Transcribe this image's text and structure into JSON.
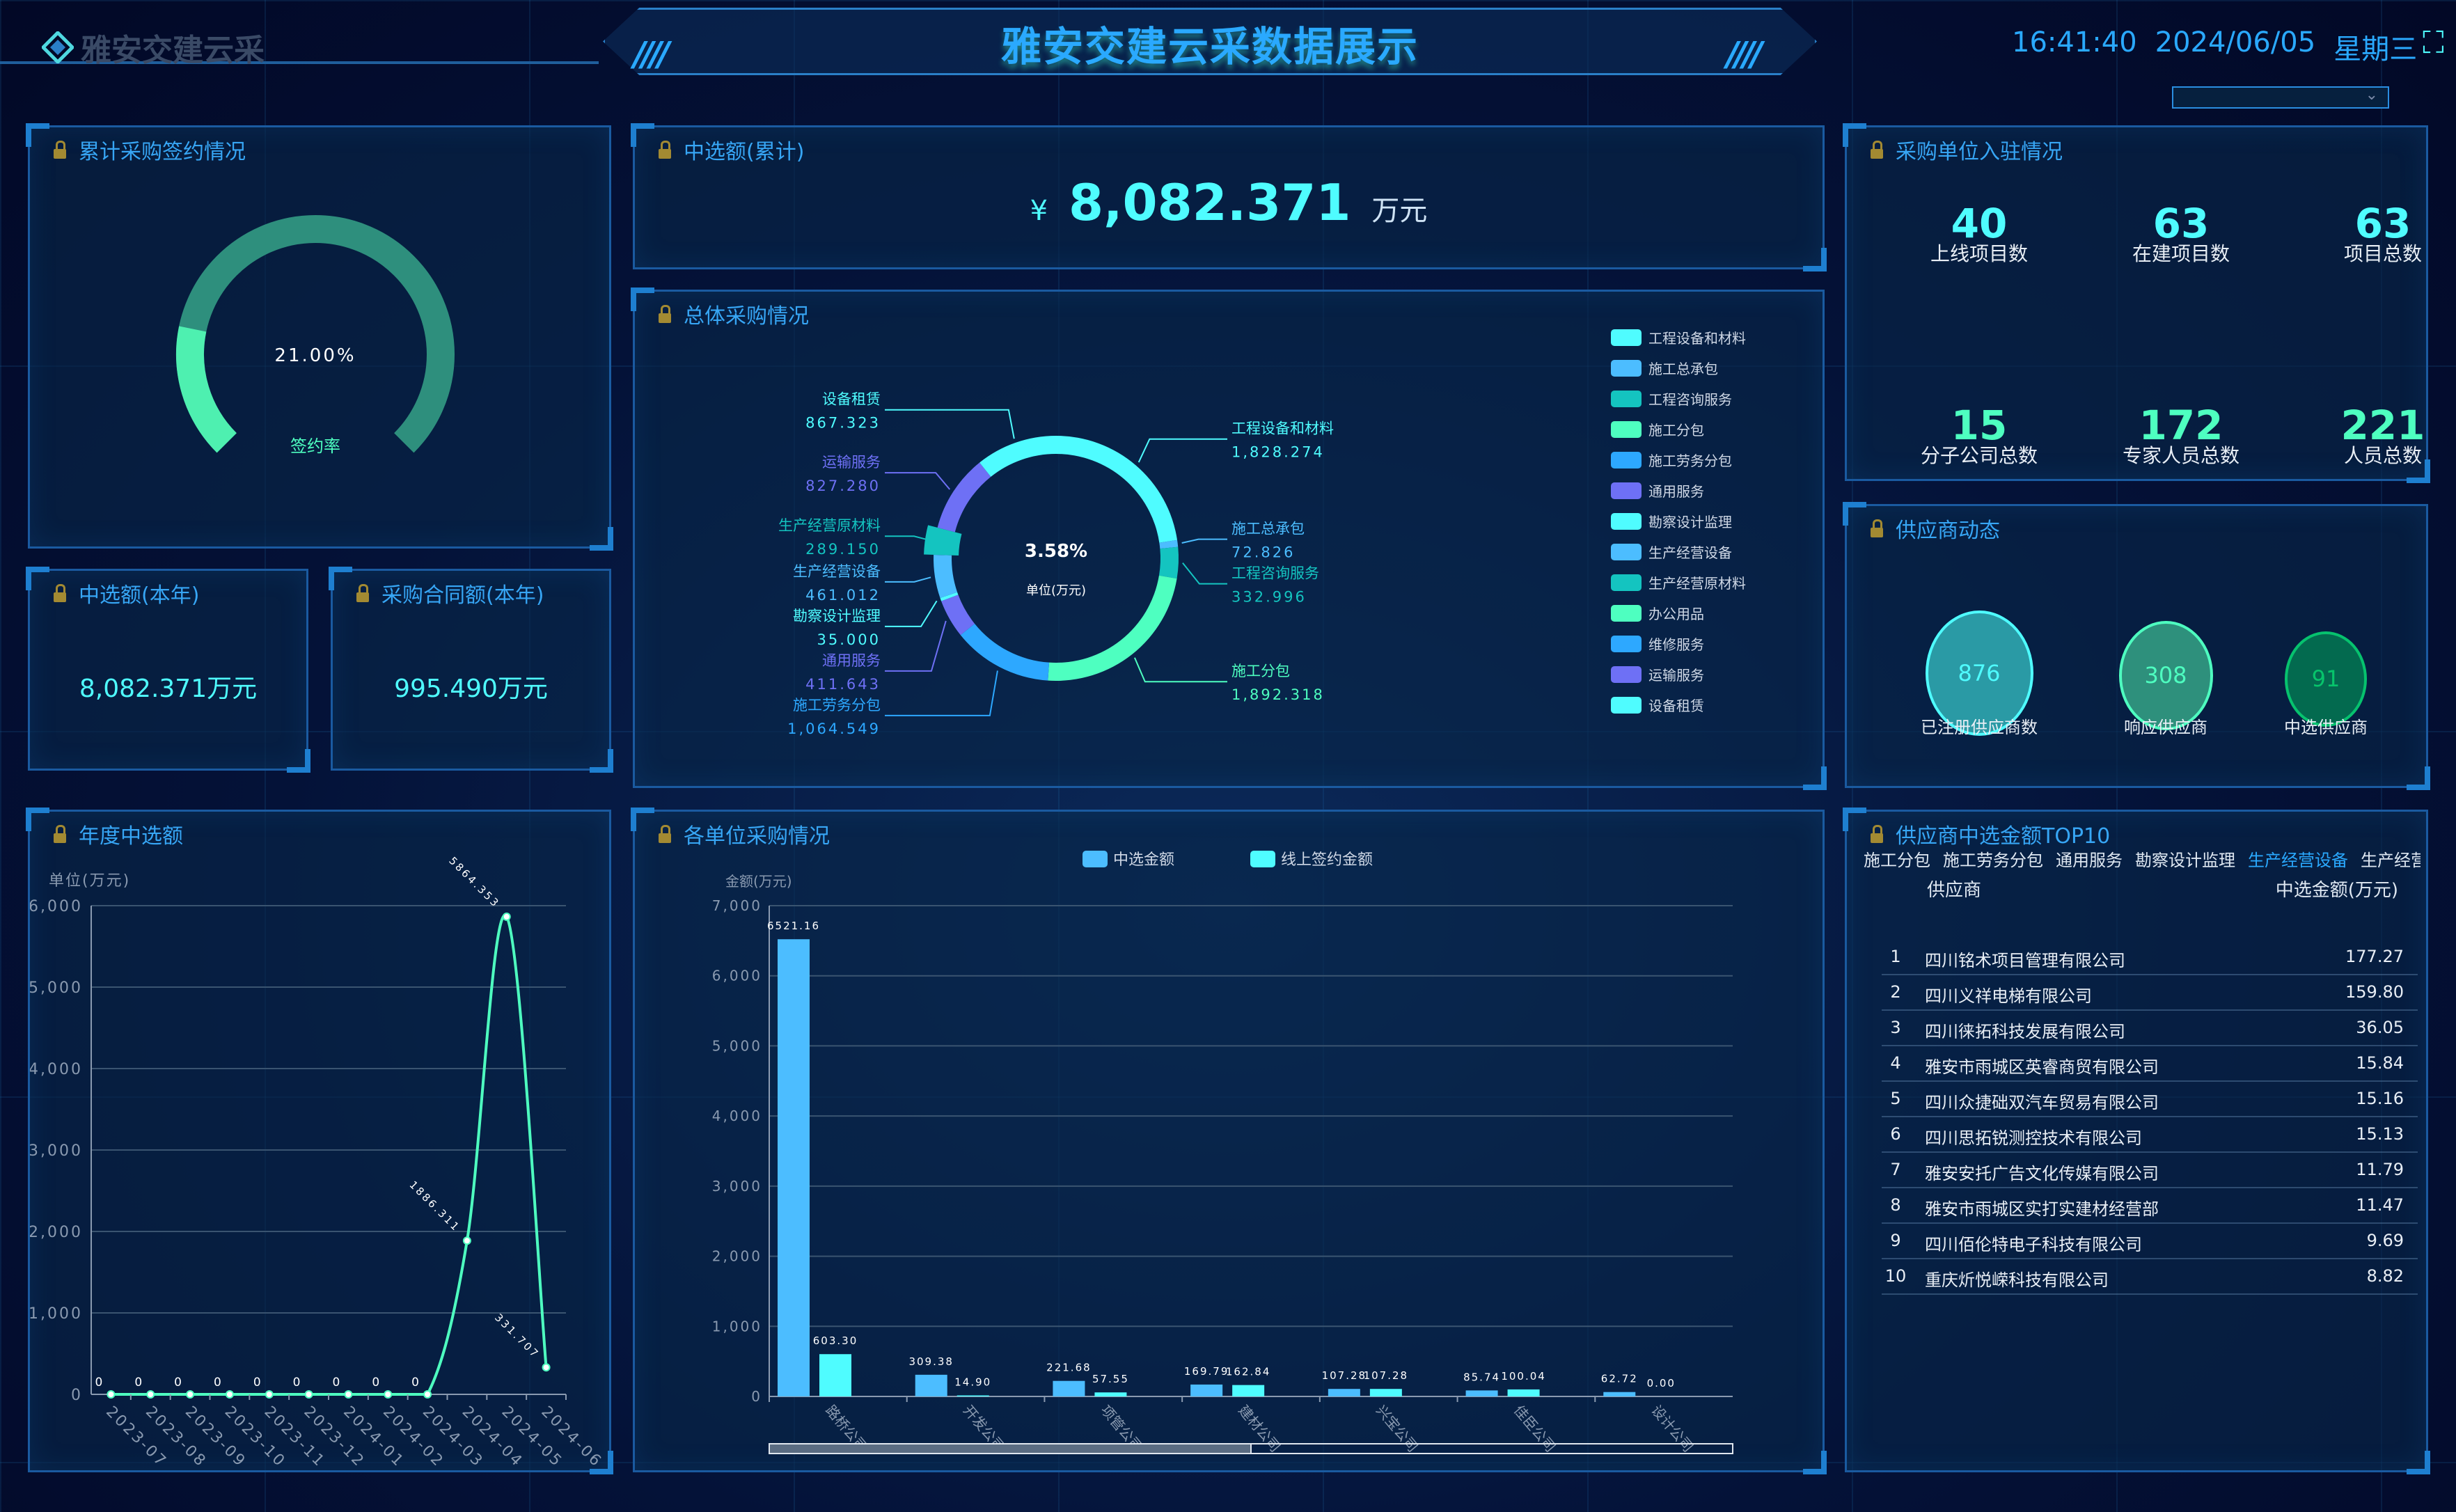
{
  "header": {
    "logo_text": "雅安交建云采",
    "title": "雅安交建云采数据展示",
    "time": "16:41:40",
    "date": "2024/06/05",
    "weekday": "星期三",
    "dropdown_value": ""
  },
  "colors": {
    "accent": "#2aa9ff",
    "cyan": "#4ffcff",
    "green": "#4effc0",
    "panel_border": "#1a5aa0"
  },
  "sign": {
    "title": "累计采购签约情况",
    "value": 21.0,
    "value_text": "21.00%",
    "label": "签约率"
  },
  "total_selected": {
    "title": "中选额(累计)",
    "currency": "¥",
    "amount": "8,082.371",
    "unit": "万元"
  },
  "year_selected": {
    "title": "中选额(本年)",
    "value": "8,082.371万元"
  },
  "contract_year": {
    "title": "采购合同额(本年)",
    "value": "995.490万元"
  },
  "overall": {
    "title": "总体采购情况"
  },
  "units": {
    "title": "采购单位入驻情况",
    "stats": [
      {
        "value": "40",
        "label": "上线项目数"
      },
      {
        "value": "63",
        "label": "在建项目数"
      },
      {
        "value": "63",
        "label": "项目总数"
      },
      {
        "value": "15",
        "label": "分子公司总数"
      },
      {
        "value": "172",
        "label": "专家人员总数"
      },
      {
        "value": "221",
        "label": "人员总数"
      }
    ]
  },
  "suppliers": {
    "title": "供应商动态",
    "items": [
      {
        "value": "876",
        "label": "已注册供应商数",
        "fill": "#2a9aa5",
        "stroke": "#4ffcff",
        "text": "#4ffcff"
      },
      {
        "value": "308",
        "label": "响应供应商",
        "fill": "#2e907c",
        "stroke": "#4effc0",
        "text": "#4effc0"
      },
      {
        "value": "91",
        "label": "中选供应商",
        "fill": "#036a4f",
        "stroke": "#06c26e",
        "text": "#07c46b"
      }
    ]
  },
  "top10": {
    "title": "供应商中选金额TOP10",
    "tabs": [
      "施工分包",
      "施工劳务分包",
      "通用服务",
      "勘察设计监理",
      "生产经营设备",
      "生产经营原材料"
    ],
    "active_tab": "生产经营设备",
    "col_supplier": "供应商",
    "col_amount": "中选金额(万元)",
    "rows": [
      {
        "rank": "1",
        "name": "四川铭术项目管理有限公司",
        "amount": "177.27"
      },
      {
        "rank": "2",
        "name": "四川义祥电梯有限公司",
        "amount": "159.80"
      },
      {
        "rank": "3",
        "name": "四川徕拓科技发展有限公司",
        "amount": "36.05"
      },
      {
        "rank": "4",
        "name": "雅安市雨城区英睿商贸有限公司",
        "amount": "15.84"
      },
      {
        "rank": "5",
        "name": "四川众捷础双汽车贸易有限公司",
        "amount": "15.16"
      },
      {
        "rank": "6",
        "name": "四川思拓锐测控技术有限公司",
        "amount": "15.13"
      },
      {
        "rank": "7",
        "name": "雅安安托广告文化传媒有限公司",
        "amount": "11.79"
      },
      {
        "rank": "8",
        "name": "雅安市雨城区实打实建材经营部",
        "amount": "11.47"
      },
      {
        "rank": "9",
        "name": "四川佰伦特电子科技有限公司",
        "amount": "9.69"
      },
      {
        "rank": "10",
        "name": "重庆炘悦嵘科技有限公司",
        "amount": "8.82"
      }
    ]
  },
  "yearly": {
    "title": "年度中选额"
  },
  "by_unit": {
    "title": "各单位采购情况"
  },
  "chart_data": [
    {
      "type": "pie",
      "variant": "donut",
      "center_text": "3.58%",
      "center_subtext": "单位(万元)",
      "slices": [
        {
          "name": "工程设备和材料",
          "value": 1828.274,
          "label": "1,828.274",
          "color": "#4ffcff"
        },
        {
          "name": "施工总承包",
          "value": 72.826,
          "label": "72.826",
          "color": "#4cbdff"
        },
        {
          "name": "工程咨询服务",
          "value": 332.996,
          "label": "332.996",
          "color": "#14c4c0"
        },
        {
          "name": "施工分包",
          "value": 1892.318,
          "label": "1,892.318",
          "color": "#4effc0"
        },
        {
          "name": "施工劳务分包",
          "value": 1064.549,
          "label": "1,064.549",
          "color": "#2da8ff"
        },
        {
          "name": "通用服务",
          "value": 411.643,
          "label": "411.643",
          "color": "#6e70f5"
        },
        {
          "name": "勘察设计监理",
          "value": 35.0,
          "label": "35.000",
          "color": "#4ffcff"
        },
        {
          "name": "生产经营设备",
          "value": 461.012,
          "label": "461.012",
          "color": "#4cbdff"
        },
        {
          "name": "生产经营原材料",
          "value": 289.15,
          "label": "289.150",
          "color": "#14c4c0",
          "highlighted": true
        },
        {
          "name": "运输服务",
          "value": 827.28,
          "label": "827.280",
          "color": "#6e70f5"
        },
        {
          "name": "设备租赁",
          "value": 867.323,
          "label": "867.323",
          "color": "#4ffcff"
        }
      ],
      "legend": [
        {
          "name": "工程设备和材料",
          "color": "#4ffcff"
        },
        {
          "name": "施工总承包",
          "color": "#4cbdff"
        },
        {
          "name": "工程咨询服务",
          "color": "#14c4c0"
        },
        {
          "name": "施工分包",
          "color": "#4effc0"
        },
        {
          "name": "施工劳务分包",
          "color": "#2da8ff"
        },
        {
          "name": "通用服务",
          "color": "#6e70f5"
        },
        {
          "name": "勘察设计监理",
          "color": "#4ffcff"
        },
        {
          "name": "生产经营设备",
          "color": "#4cbdff"
        },
        {
          "name": "生产经营原材料",
          "color": "#14c4c0"
        },
        {
          "name": "办公用品",
          "color": "#4effc0"
        },
        {
          "name": "维修服务",
          "color": "#2da8ff"
        },
        {
          "name": "运输服务",
          "color": "#6e70f5"
        },
        {
          "name": "设备租赁",
          "color": "#4ffcff"
        }
      ],
      "legend_position": "right"
    },
    {
      "type": "line",
      "smooth": true,
      "ylabel": "单位(万元)",
      "ylim": [
        0,
        6000
      ],
      "yticks": [
        "0",
        "1,000",
        "2,000",
        "3,000",
        "4,000",
        "5,000",
        "6,000"
      ],
      "categories": [
        "2023-07",
        "2023-08",
        "2023-09",
        "2023-10",
        "2023-11",
        "2023-12",
        "2024-01",
        "2024-02",
        "2024-03",
        "2024-04",
        "2024-05",
        "2024-06"
      ],
      "values": [
        0,
        0,
        0,
        0,
        0,
        0,
        0,
        0,
        0,
        1886.311,
        5864.353,
        331.707
      ],
      "labels": [
        "0",
        "0",
        "0",
        "0",
        "0",
        "0",
        "0",
        "0",
        "0",
        "1886.311",
        "5864.353",
        "331.707"
      ],
      "color": "#4effc0",
      "grid": true
    },
    {
      "type": "bar",
      "ylabel": "金额(万元)",
      "ylim": [
        0,
        7000
      ],
      "yticks": [
        "0",
        "1,000",
        "2,000",
        "3,000",
        "4,000",
        "5,000",
        "6,000",
        "7,000"
      ],
      "categories": [
        "路桥公司",
        "开发公司",
        "项管公司",
        "建材公司",
        "兴宝公司",
        "佳臣公司",
        "设计公司"
      ],
      "series": [
        {
          "name": "中选金额",
          "color": "#4cbdff",
          "values": [
            6521.16,
            309.38,
            221.68,
            169.79,
            107.28,
            85.74,
            62.72
          ],
          "labels": [
            "6521.16",
            "309.38",
            "221.68",
            "169.79",
            "107.28",
            "85.74",
            "62.72"
          ]
        },
        {
          "name": "线上签约金额",
          "color": "#4ffcff",
          "values": [
            603.3,
            14.9,
            57.55,
            162.84,
            107.28,
            100.04,
            0.0
          ],
          "labels": [
            "603.30",
            "14.90",
            "57.55",
            "162.84",
            "107.28",
            "100.04",
            "0.00"
          ]
        }
      ],
      "legend_position": "top",
      "grid": true,
      "scroll_fraction": 0.5
    }
  ]
}
